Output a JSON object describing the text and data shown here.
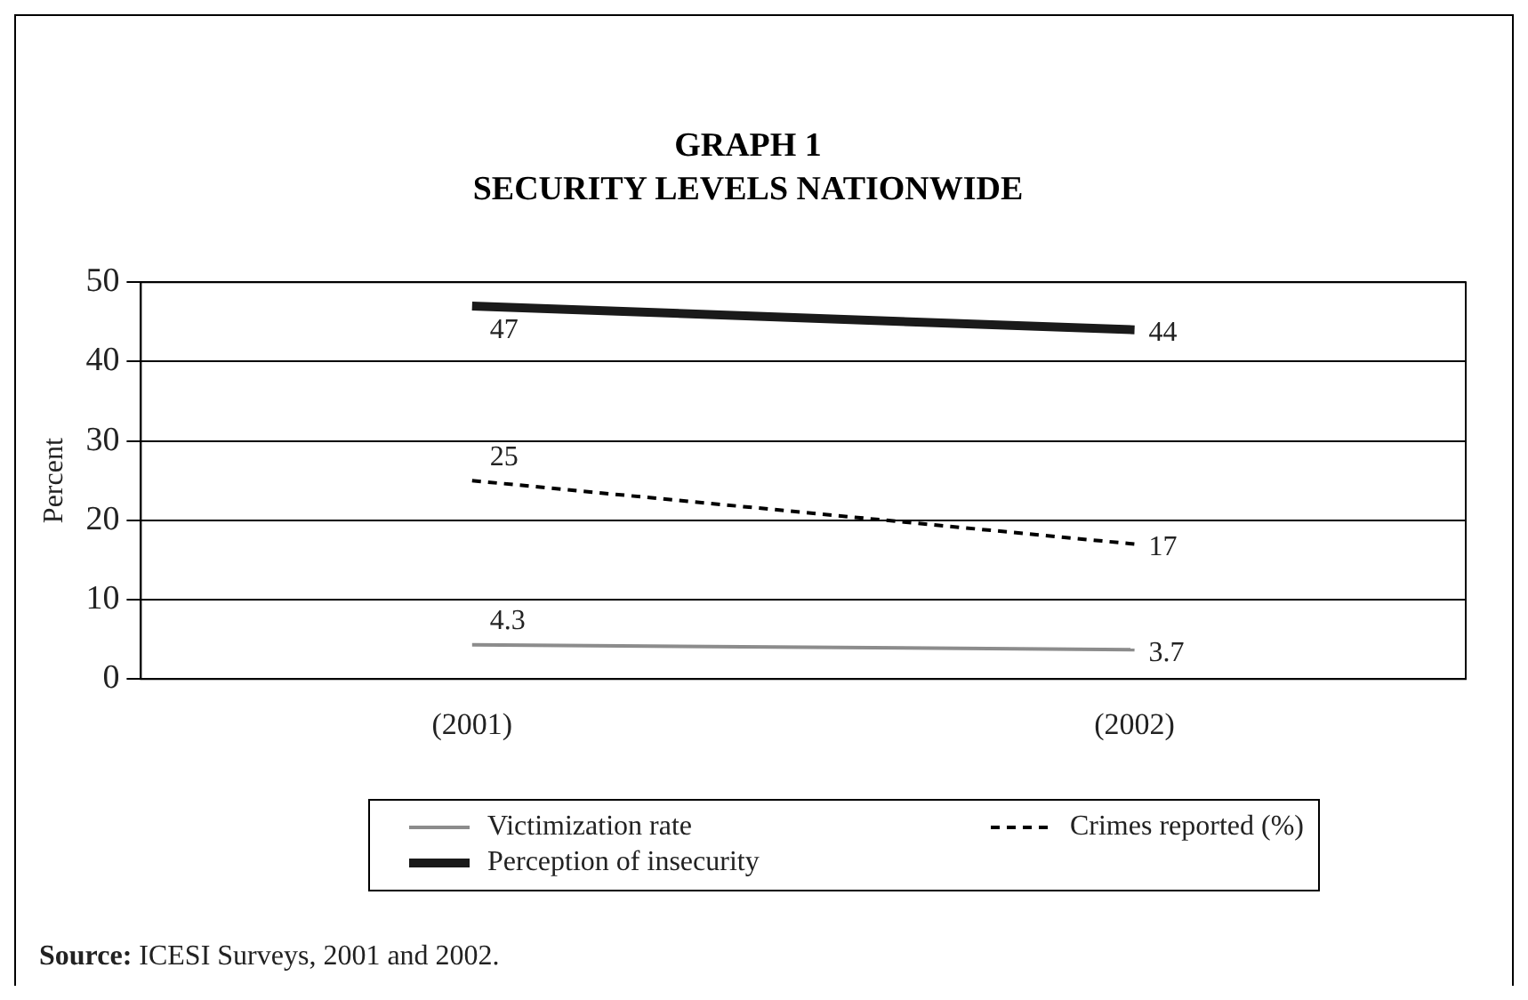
{
  "chart_data": {
    "type": "line",
    "title": "GRAPH 1",
    "subtitle": "SECURITY LEVELS NATIONWIDE",
    "ylabel": "Percent",
    "categories": [
      "(2001)",
      "(2002)"
    ],
    "series": [
      {
        "name": "Victimization rate",
        "color": "#8c8c8c",
        "values": [
          4.3,
          3.7
        ],
        "line_style": "solid"
      },
      {
        "name": "Crimes reported (%)",
        "color": "#000000",
        "values": [
          25,
          17
        ],
        "line_style": "dashed"
      },
      {
        "name": "Perception of insecurity",
        "color": "#1a1a1a",
        "values": [
          47,
          44
        ],
        "line_style": "solid"
      }
    ],
    "ylim": [
      0,
      50
    ],
    "yticks": [
      0,
      10,
      20,
      30,
      40,
      50
    ],
    "grid": "y",
    "legend": "bottom",
    "marker": "none",
    "data_labels": true,
    "annotations": [
      "Source: ICESI Surveys, 2001 and 2002."
    ]
  }
}
